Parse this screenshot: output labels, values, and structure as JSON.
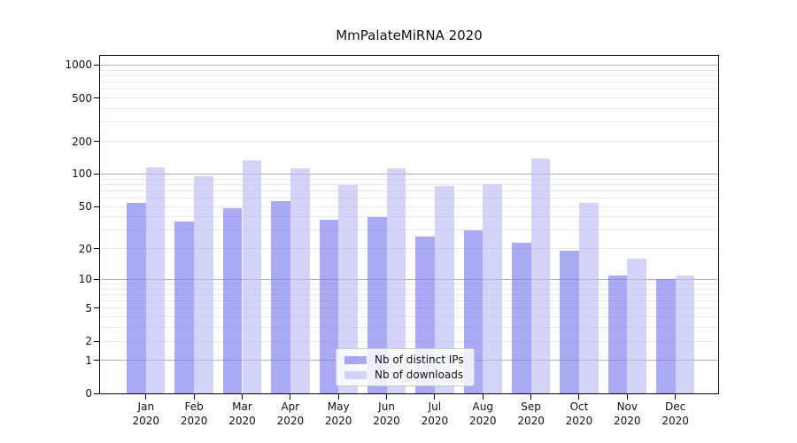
{
  "chart_data": {
    "type": "bar",
    "title": "MmPalateMiRNA 2020",
    "categories": [
      "Jan",
      "Feb",
      "Mar",
      "Apr",
      "May",
      "Jun",
      "Jul",
      "Aug",
      "Sep",
      "Oct",
      "Nov",
      "Dec"
    ],
    "category_year": "2020",
    "series": [
      {
        "name": "Nb of distinct IPs",
        "color": "rgba(124,124,238,0.65)",
        "values": [
          54,
          36,
          48,
          56,
          38,
          40,
          26,
          30,
          23,
          19,
          11,
          10
        ]
      },
      {
        "name": "Nb of downloads",
        "color": "rgba(186,186,246,0.62)",
        "values": [
          116,
          95,
          134,
          112,
          79,
          112,
          77,
          80,
          140,
          54,
          16,
          11
        ]
      }
    ],
    "yscale": "log1p",
    "yticks": [
      0,
      1,
      2,
      5,
      10,
      20,
      50,
      100,
      200,
      500,
      1000
    ],
    "ylim": [
      0,
      1200
    ],
    "grid": true,
    "legend_position": "lower center",
    "background": "#ffffff",
    "axis_color": "#000000",
    "grid_major_color": "#b0b0b0",
    "grid_minor_color": "#e9e9e9"
  }
}
